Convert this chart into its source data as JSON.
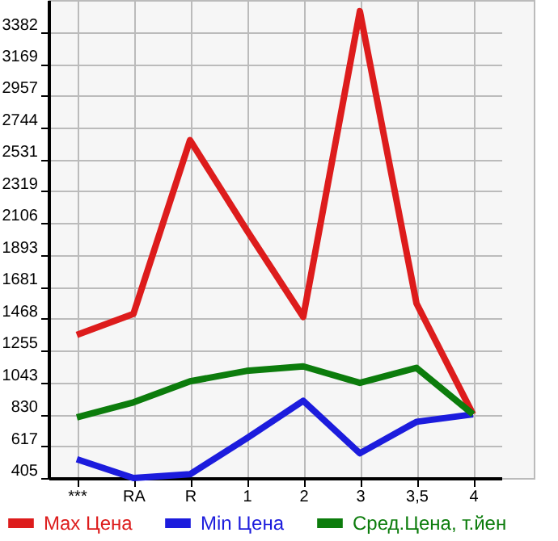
{
  "chart_data": {
    "type": "line",
    "categories": [
      "***",
      "RA",
      "R",
      "1",
      "2",
      "3",
      "3,5",
      "4"
    ],
    "series": [
      {
        "name": "Max Цена",
        "color": "#dd1c1c",
        "values": [
          1360,
          1500,
          2660,
          2060,
          1480,
          3520,
          1570,
          830
        ]
      },
      {
        "name": "Min Цена",
        "color": "#1c1cdd",
        "values": [
          530,
          405,
          430,
          670,
          920,
          570,
          780,
          830
        ]
      },
      {
        "name": "Сред.Цена, т.йен",
        "color": "#0c7c0c",
        "values": [
          810,
          910,
          1050,
          1120,
          1150,
          1040,
          1140,
          830
        ]
      }
    ],
    "ylim": [
      405,
      3595
    ],
    "yticks": [
      405,
      617,
      830,
      1043,
      1255,
      1468,
      1681,
      1893,
      2106,
      2319,
      2531,
      2744,
      2957,
      3169,
      3382
    ],
    "grid": true,
    "legend": "bottom",
    "marker": "none",
    "line_style": "solid"
  }
}
